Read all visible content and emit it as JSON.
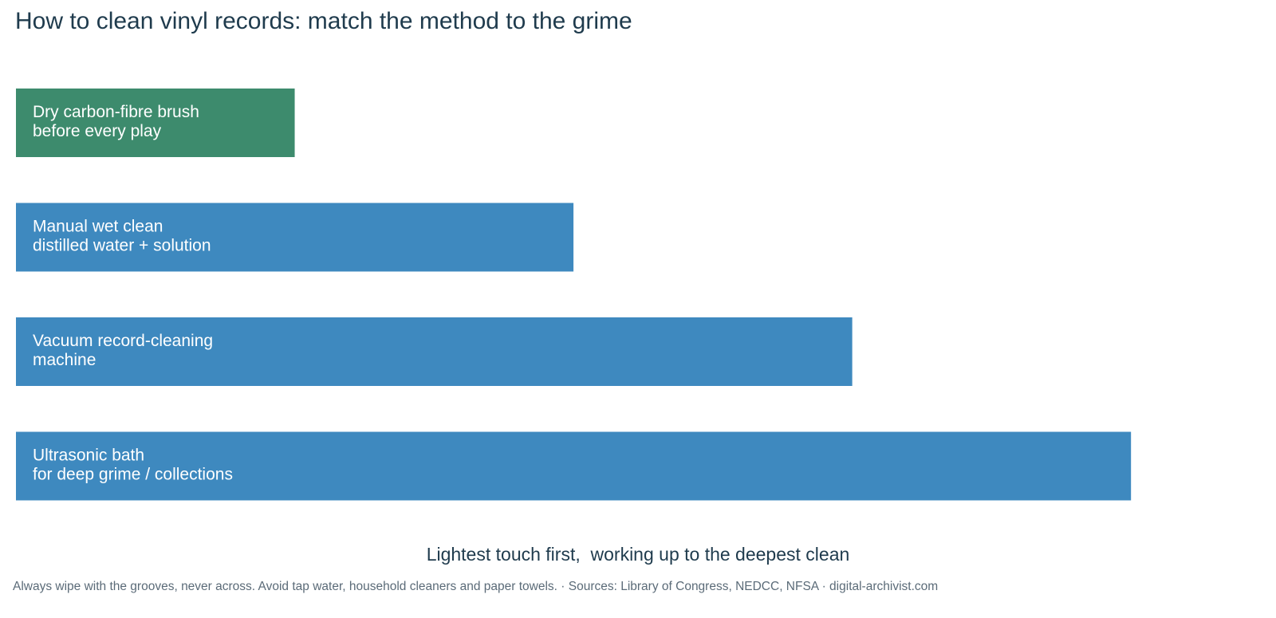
{
  "chart_data": {
    "type": "bar",
    "orientation": "horizontal",
    "title": "How to clean vinyl records: match the method to the grime",
    "xlabel": "Lightest touch first,  working up to the deepest clean",
    "ylabel": "",
    "xlim": [
      0,
      4.4
    ],
    "grid": false,
    "categories": [
      "Dry carbon-fibre brush\nbefore every play",
      "Manual wet clean\ndistilled water + solution",
      "Vacuum record-cleaning\nmachine",
      "Ultrasonic bath\nfor deep grime / collections"
    ],
    "values": [
      1,
      2,
      3,
      4
    ],
    "bar_colors": [
      "#3d8b6d",
      "#3e89bf",
      "#3e89bf",
      "#3e89bf"
    ],
    "label_color": "#ffffff"
  },
  "footer": "Always wipe with the grooves, never across. Avoid tap water, household cleaners and paper towels.  ·  Sources: Library of Congress, NEDCC, NFSA  ·  digital-archivist.com"
}
